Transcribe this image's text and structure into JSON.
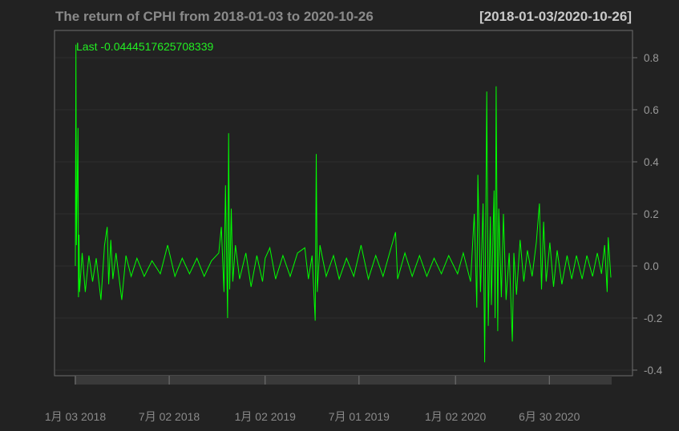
{
  "chart_data": {
    "type": "line",
    "title": "The return of CPHI from 2018-01-03 to 2020-10-26",
    "date_range": "[2018-01-03/2020-10-26]",
    "last_label": "Last -0.0444517625708339",
    "y_ticks": [
      "0.8",
      "0.6",
      "0.4",
      "0.2",
      "0.0",
      "-0.2",
      "-0.4"
    ],
    "y_tick_values": [
      0.8,
      0.6,
      0.4,
      0.2,
      0.0,
      -0.2,
      -0.4
    ],
    "ylim": [
      -0.42,
      0.9
    ],
    "x_ticks": [
      "1月 03 2018",
      "7月 02 2018",
      "1月 02 2019",
      "7月 01 2019",
      "1月 02 2020",
      "6月 30 2020"
    ],
    "x_tick_dates": [
      "2018-01-03",
      "2018-07-02",
      "2019-01-02",
      "2019-07-01",
      "2020-01-02",
      "2020-06-30"
    ],
    "x_start": "2018-01-03",
    "x_end": "2020-10-26",
    "grid": true,
    "line_color": "#00ff00",
    "series": [
      {
        "points": [
          [
            "2018-01-03",
            0.0
          ],
          [
            "2018-01-04",
            0.85
          ],
          [
            "2018-01-05",
            0.08
          ],
          [
            "2018-01-08",
            0.53
          ],
          [
            "2018-01-09",
            -0.12
          ],
          [
            "2018-01-10",
            0.12
          ],
          [
            "2018-01-11",
            -0.1
          ],
          [
            "2018-01-16",
            0.05
          ],
          [
            "2018-01-22",
            -0.1
          ],
          [
            "2018-01-29",
            0.04
          ],
          [
            "2018-02-05",
            -0.06
          ],
          [
            "2018-02-12",
            0.03
          ],
          [
            "2018-02-21",
            -0.13
          ],
          [
            "2018-02-28",
            0.08
          ],
          [
            "2018-03-05",
            0.15
          ],
          [
            "2018-03-08",
            -0.07
          ],
          [
            "2018-03-12",
            0.1
          ],
          [
            "2018-03-16",
            -0.05
          ],
          [
            "2018-03-22",
            0.05
          ],
          [
            "2018-04-02",
            -0.13
          ],
          [
            "2018-04-10",
            0.04
          ],
          [
            "2018-04-20",
            -0.04
          ],
          [
            "2018-05-01",
            0.03
          ],
          [
            "2018-05-15",
            -0.04
          ],
          [
            "2018-05-30",
            0.02
          ],
          [
            "2018-06-15",
            -0.03
          ],
          [
            "2018-06-29",
            0.08
          ],
          [
            "2018-07-13",
            -0.04
          ],
          [
            "2018-07-27",
            0.03
          ],
          [
            "2018-08-10",
            -0.03
          ],
          [
            "2018-08-24",
            0.03
          ],
          [
            "2018-09-07",
            -0.04
          ],
          [
            "2018-09-21",
            0.02
          ],
          [
            "2018-10-05",
            0.05
          ],
          [
            "2018-10-10",
            0.15
          ],
          [
            "2018-10-15",
            -0.1
          ],
          [
            "2018-10-18",
            0.31
          ],
          [
            "2018-10-22",
            -0.2
          ],
          [
            "2018-10-24",
            0.51
          ],
          [
            "2018-10-26",
            -0.09
          ],
          [
            "2018-10-29",
            0.22
          ],
          [
            "2018-11-01",
            -0.06
          ],
          [
            "2018-11-06",
            0.08
          ],
          [
            "2018-11-14",
            -0.05
          ],
          [
            "2018-11-26",
            0.05
          ],
          [
            "2018-12-06",
            -0.08
          ],
          [
            "2018-12-17",
            0.04
          ],
          [
            "2018-12-28",
            -0.06
          ],
          [
            "2019-01-02",
            0.03
          ],
          [
            "2019-01-11",
            0.07
          ],
          [
            "2019-01-22",
            -0.05
          ],
          [
            "2019-02-05",
            0.04
          ],
          [
            "2019-02-19",
            -0.04
          ],
          [
            "2019-03-05",
            0.05
          ],
          [
            "2019-03-19",
            0.07
          ],
          [
            "2019-03-26",
            -0.05
          ],
          [
            "2019-04-02",
            0.04
          ],
          [
            "2019-04-08",
            -0.21
          ],
          [
            "2019-04-10",
            0.43
          ],
          [
            "2019-04-12",
            -0.1
          ],
          [
            "2019-04-17",
            0.08
          ],
          [
            "2019-04-29",
            -0.04
          ],
          [
            "2019-05-13",
            0.04
          ],
          [
            "2019-05-24",
            -0.05
          ],
          [
            "2019-06-07",
            0.03
          ],
          [
            "2019-06-21",
            -0.04
          ],
          [
            "2019-07-05",
            0.08
          ],
          [
            "2019-07-19",
            -0.05
          ],
          [
            "2019-08-02",
            0.04
          ],
          [
            "2019-08-16",
            -0.04
          ],
          [
            "2019-08-30",
            0.06
          ],
          [
            "2019-09-09",
            0.13
          ],
          [
            "2019-09-13",
            -0.05
          ],
          [
            "2019-09-27",
            0.05
          ],
          [
            "2019-10-11",
            -0.04
          ],
          [
            "2019-10-25",
            0.04
          ],
          [
            "2019-11-08",
            -0.04
          ],
          [
            "2019-11-22",
            0.03
          ],
          [
            "2019-12-06",
            -0.03
          ],
          [
            "2019-12-20",
            0.04
          ],
          [
            "2020-01-06",
            -0.03
          ],
          [
            "2020-01-17",
            0.05
          ],
          [
            "2020-01-31",
            -0.06
          ],
          [
            "2020-02-07",
            0.2
          ],
          [
            "2020-02-12",
            -0.16
          ],
          [
            "2020-02-14",
            0.35
          ],
          [
            "2020-02-19",
            -0.1
          ],
          [
            "2020-02-24",
            0.24
          ],
          [
            "2020-02-27",
            -0.37
          ],
          [
            "2020-03-02",
            0.67
          ],
          [
            "2020-03-05",
            -0.23
          ],
          [
            "2020-03-09",
            0.19
          ],
          [
            "2020-03-11",
            -0.15
          ],
          [
            "2020-03-16",
            0.29
          ],
          [
            "2020-03-18",
            -0.2
          ],
          [
            "2020-03-20",
            0.69
          ],
          [
            "2020-03-23",
            -0.25
          ],
          [
            "2020-03-25",
            0.22
          ],
          [
            "2020-03-30",
            -0.12
          ],
          [
            "2020-04-03",
            0.2
          ],
          [
            "2020-04-08",
            -0.13
          ],
          [
            "2020-04-14",
            0.05
          ],
          [
            "2020-04-20",
            -0.29
          ],
          [
            "2020-04-23",
            0.05
          ],
          [
            "2020-04-28",
            -0.11
          ],
          [
            "2020-05-05",
            0.1
          ],
          [
            "2020-05-12",
            -0.06
          ],
          [
            "2020-05-19",
            0.06
          ],
          [
            "2020-05-28",
            -0.04
          ],
          [
            "2020-06-05",
            0.09
          ],
          [
            "2020-06-11",
            0.24
          ],
          [
            "2020-06-15",
            -0.09
          ],
          [
            "2020-06-19",
            0.17
          ],
          [
            "2020-06-24",
            -0.06
          ],
          [
            "2020-07-01",
            0.09
          ],
          [
            "2020-07-08",
            -0.08
          ],
          [
            "2020-07-15",
            0.06
          ],
          [
            "2020-07-24",
            -0.07
          ],
          [
            "2020-08-03",
            0.04
          ],
          [
            "2020-08-12",
            -0.05
          ],
          [
            "2020-08-21",
            0.04
          ],
          [
            "2020-09-01",
            -0.05
          ],
          [
            "2020-09-10",
            0.04
          ],
          [
            "2020-09-21",
            -0.04
          ],
          [
            "2020-09-30",
            0.05
          ],
          [
            "2020-10-08",
            -0.03
          ],
          [
            "2020-10-14",
            0.08
          ],
          [
            "2020-10-19",
            -0.1
          ],
          [
            "2020-10-21",
            0.11
          ],
          [
            "2020-10-26",
            -0.0444517625708339
          ]
        ]
      }
    ]
  }
}
